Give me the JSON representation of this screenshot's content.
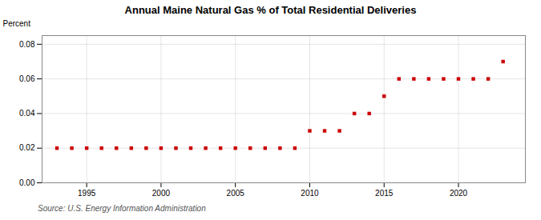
{
  "chart_data": {
    "type": "scatter",
    "title": "Annual Maine Natural Gas % of Total Residential Deliveries",
    "ylabel": "Percent",
    "source": "Source: U.S. Energy Information Administration",
    "x": [
      1993,
      1994,
      1995,
      1996,
      1997,
      1998,
      1999,
      2000,
      2001,
      2002,
      2003,
      2004,
      2005,
      2006,
      2007,
      2008,
      2009,
      2010,
      2011,
      2012,
      2013,
      2014,
      2015,
      2016,
      2017,
      2018,
      2019,
      2020,
      2021,
      2022,
      2023
    ],
    "values": [
      0.02,
      0.02,
      0.02,
      0.02,
      0.02,
      0.02,
      0.02,
      0.02,
      0.02,
      0.02,
      0.02,
      0.02,
      0.02,
      0.02,
      0.02,
      0.02,
      0.02,
      0.03,
      0.03,
      0.03,
      0.04,
      0.04,
      0.05,
      0.06,
      0.06,
      0.06,
      0.06,
      0.06,
      0.06,
      0.06,
      0.07
    ],
    "color": "#cc0000",
    "marker": "square",
    "xlim": [
      1992,
      2024.5
    ],
    "ylim": [
      0.0,
      0.085
    ],
    "xticks": [
      1995,
      2000,
      2005,
      2010,
      2015,
      2020
    ],
    "yticks": [
      {
        "value": 0.0,
        "label": "0.00"
      },
      {
        "value": 0.02,
        "label": "0.02"
      },
      {
        "value": 0.04,
        "label": "0.04"
      },
      {
        "value": 0.06,
        "label": "0.06"
      },
      {
        "value": 0.08,
        "label": "0.08"
      }
    ],
    "grid": true
  }
}
